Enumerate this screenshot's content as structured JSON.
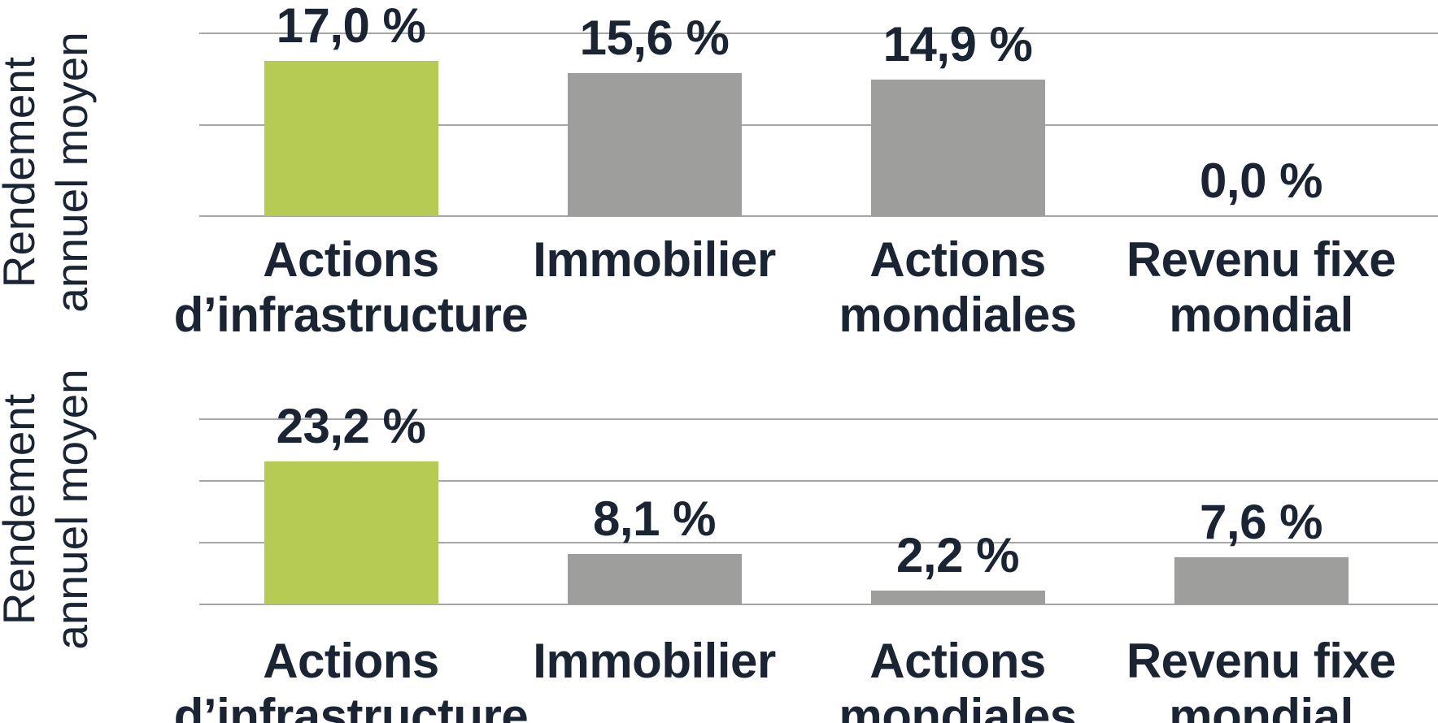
{
  "colors": {
    "background": "#ffffff",
    "accent_green": "#b5cb54",
    "bar_gray": "#9e9e9c",
    "text_navy": "#1a2433",
    "gridline": "#a6a6a6"
  },
  "chart_data": [
    {
      "type": "bar",
      "title": "",
      "ylabel": "Rendement annuel moyen",
      "ylabel_lines": [
        "Rendement",
        "annuel moyen"
      ],
      "categories": [
        "Actions d’infrastructure",
        "Immobilier",
        "Actions mondiales",
        "Revenu fixe mondial"
      ],
      "category_lines": [
        [
          "Actions",
          "d’infrastructure"
        ],
        [
          "Immobilier"
        ],
        [
          "Actions",
          "mondiales"
        ],
        [
          "Revenu fixe",
          "mondial"
        ]
      ],
      "values": [
        17.0,
        15.6,
        14.9,
        0.0
      ],
      "value_labels": [
        "17,0 %",
        "15,6 %",
        "14,9 %",
        "0,0 %"
      ],
      "bar_colors": [
        "accent_green",
        "bar_gray",
        "bar_gray",
        "bar_gray"
      ],
      "xlabel": "",
      "ylim": [
        0,
        20
      ],
      "gridline_step": 10,
      "grid": true,
      "legend": false,
      "y_tick_labels_shown": false
    },
    {
      "type": "bar",
      "title": "",
      "ylabel": "Rendement annuel moyen",
      "ylabel_lines": [
        "Rendement",
        "annuel moyen"
      ],
      "categories": [
        "Actions d’infrastructure",
        "Immobilier",
        "Actions mondiales",
        "Revenu fixe mondial"
      ],
      "category_lines": [
        [
          "Actions",
          "d’infrastructure"
        ],
        [
          "Immobilier"
        ],
        [
          "Actions",
          "mondiales"
        ],
        [
          "Revenu fixe",
          "mondial"
        ]
      ],
      "values": [
        23.2,
        8.1,
        2.2,
        7.6
      ],
      "value_labels": [
        "23,2 %",
        "8,1 %",
        "2,2 %",
        "7,6 %"
      ],
      "bar_colors": [
        "accent_green",
        "bar_gray",
        "bar_gray",
        "bar_gray"
      ],
      "xlabel": "",
      "ylim": [
        0,
        30
      ],
      "gridline_step": 10,
      "grid": true,
      "legend": false,
      "y_tick_labels_shown": false
    }
  ]
}
